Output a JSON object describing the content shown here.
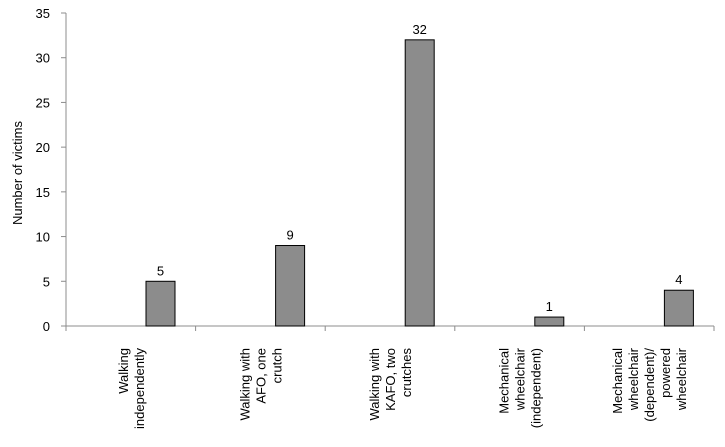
{
  "chart_data": {
    "type": "bar",
    "title": "",
    "xlabel": "",
    "ylabel": "Number of victims",
    "ylim": [
      0,
      35
    ],
    "yticks": [
      0,
      5,
      10,
      15,
      20,
      25,
      30,
      35
    ],
    "grid": false,
    "legend": "none",
    "categories": [
      [
        "Walking",
        "independently"
      ],
      [
        "Walking with",
        "AFO, one",
        "crutch"
      ],
      [
        "Walking with",
        "KAFO, two",
        "crutches"
      ],
      [
        "Mechanical",
        "wheelchair",
        "(independent)"
      ],
      [
        "Mechanical",
        "wheelchair",
        "(dependent)/",
        "powered",
        "wheelchair"
      ]
    ],
    "values": [
      5,
      9,
      32,
      1,
      4
    ],
    "data_labels": [
      "5",
      "9",
      "32",
      "1",
      "4"
    ],
    "colors": {
      "bar_fill": "#8c8c8c",
      "bar_stroke": "#000000",
      "axis": "#8c8c8c"
    }
  }
}
